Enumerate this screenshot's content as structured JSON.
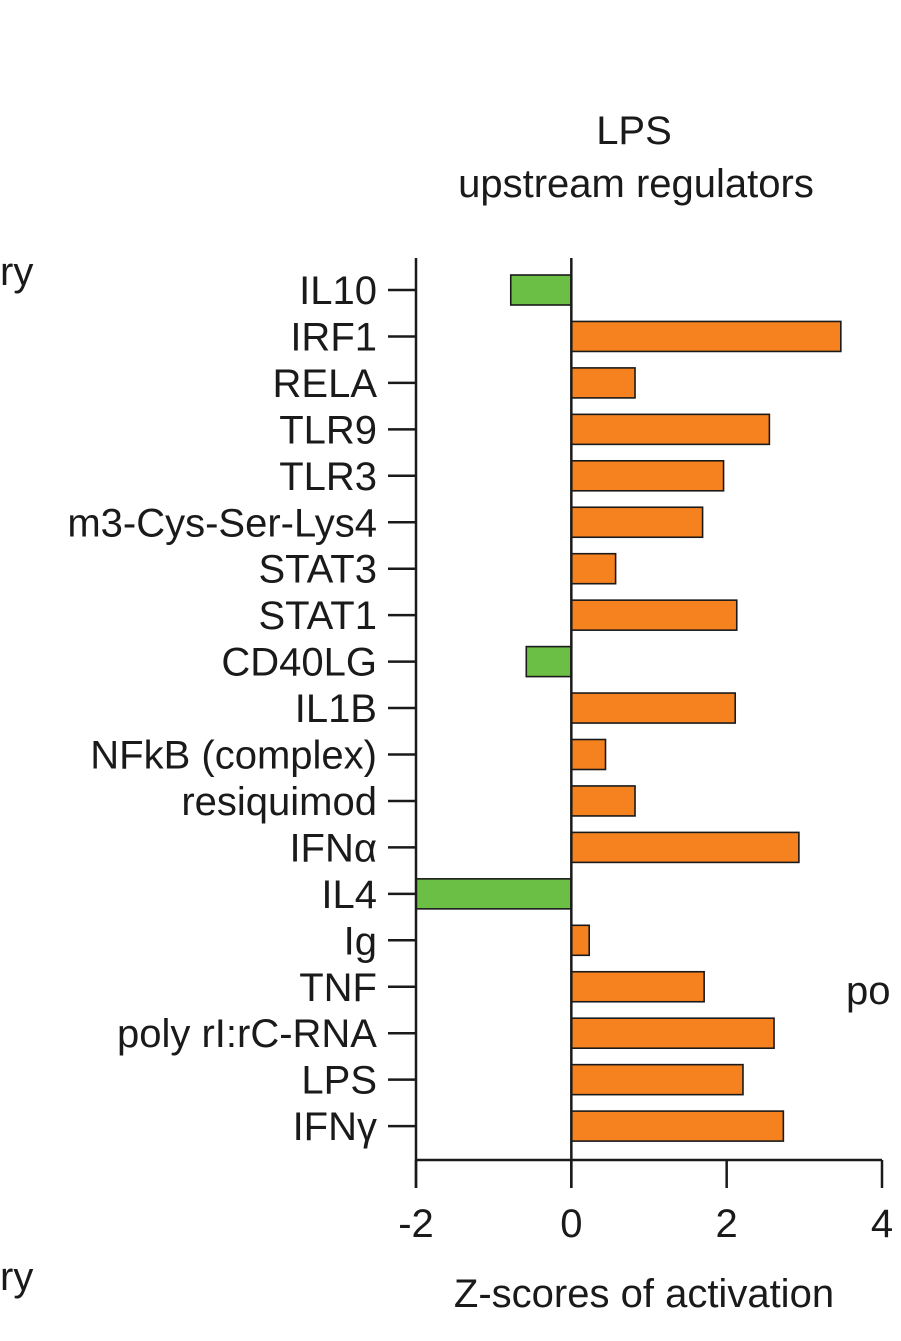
{
  "chart_data": {
    "type": "bar",
    "orientation": "horizontal",
    "title": "LPS",
    "subtitle": "upstream regulators",
    "xlabel": "Z-scores of activation",
    "ylabel": "",
    "xlim": [
      -2,
      4
    ],
    "xticks": [
      "-2",
      "0",
      "2",
      "4"
    ],
    "grid": false,
    "colors": {
      "positive": "#f5821f",
      "negative": "#6cbf45",
      "outline": "#1a1a1a"
    },
    "categories": [
      "IL10",
      "IRF1",
      "RELA",
      "TLR9",
      "TLR3",
      "m3-Cys-Ser-Lys4",
      "STAT3",
      "STAT1",
      "CD40LG",
      "IL1B",
      "NFkB (complex)",
      "resiquimod",
      "IFNα",
      "IL4",
      "Ig",
      "TNF",
      "poly rI:rC-RNA",
      "LPS",
      "IFNγ"
    ],
    "values": [
      -0.78,
      3.47,
      0.82,
      2.55,
      1.96,
      1.69,
      0.57,
      2.13,
      -0.58,
      2.11,
      0.44,
      0.82,
      2.93,
      -2.0,
      0.23,
      1.71,
      2.61,
      2.21,
      2.73
    ]
  },
  "cropped_text": {
    "top_left": "ry",
    "bottom_left": "ry",
    "right": "po"
  }
}
